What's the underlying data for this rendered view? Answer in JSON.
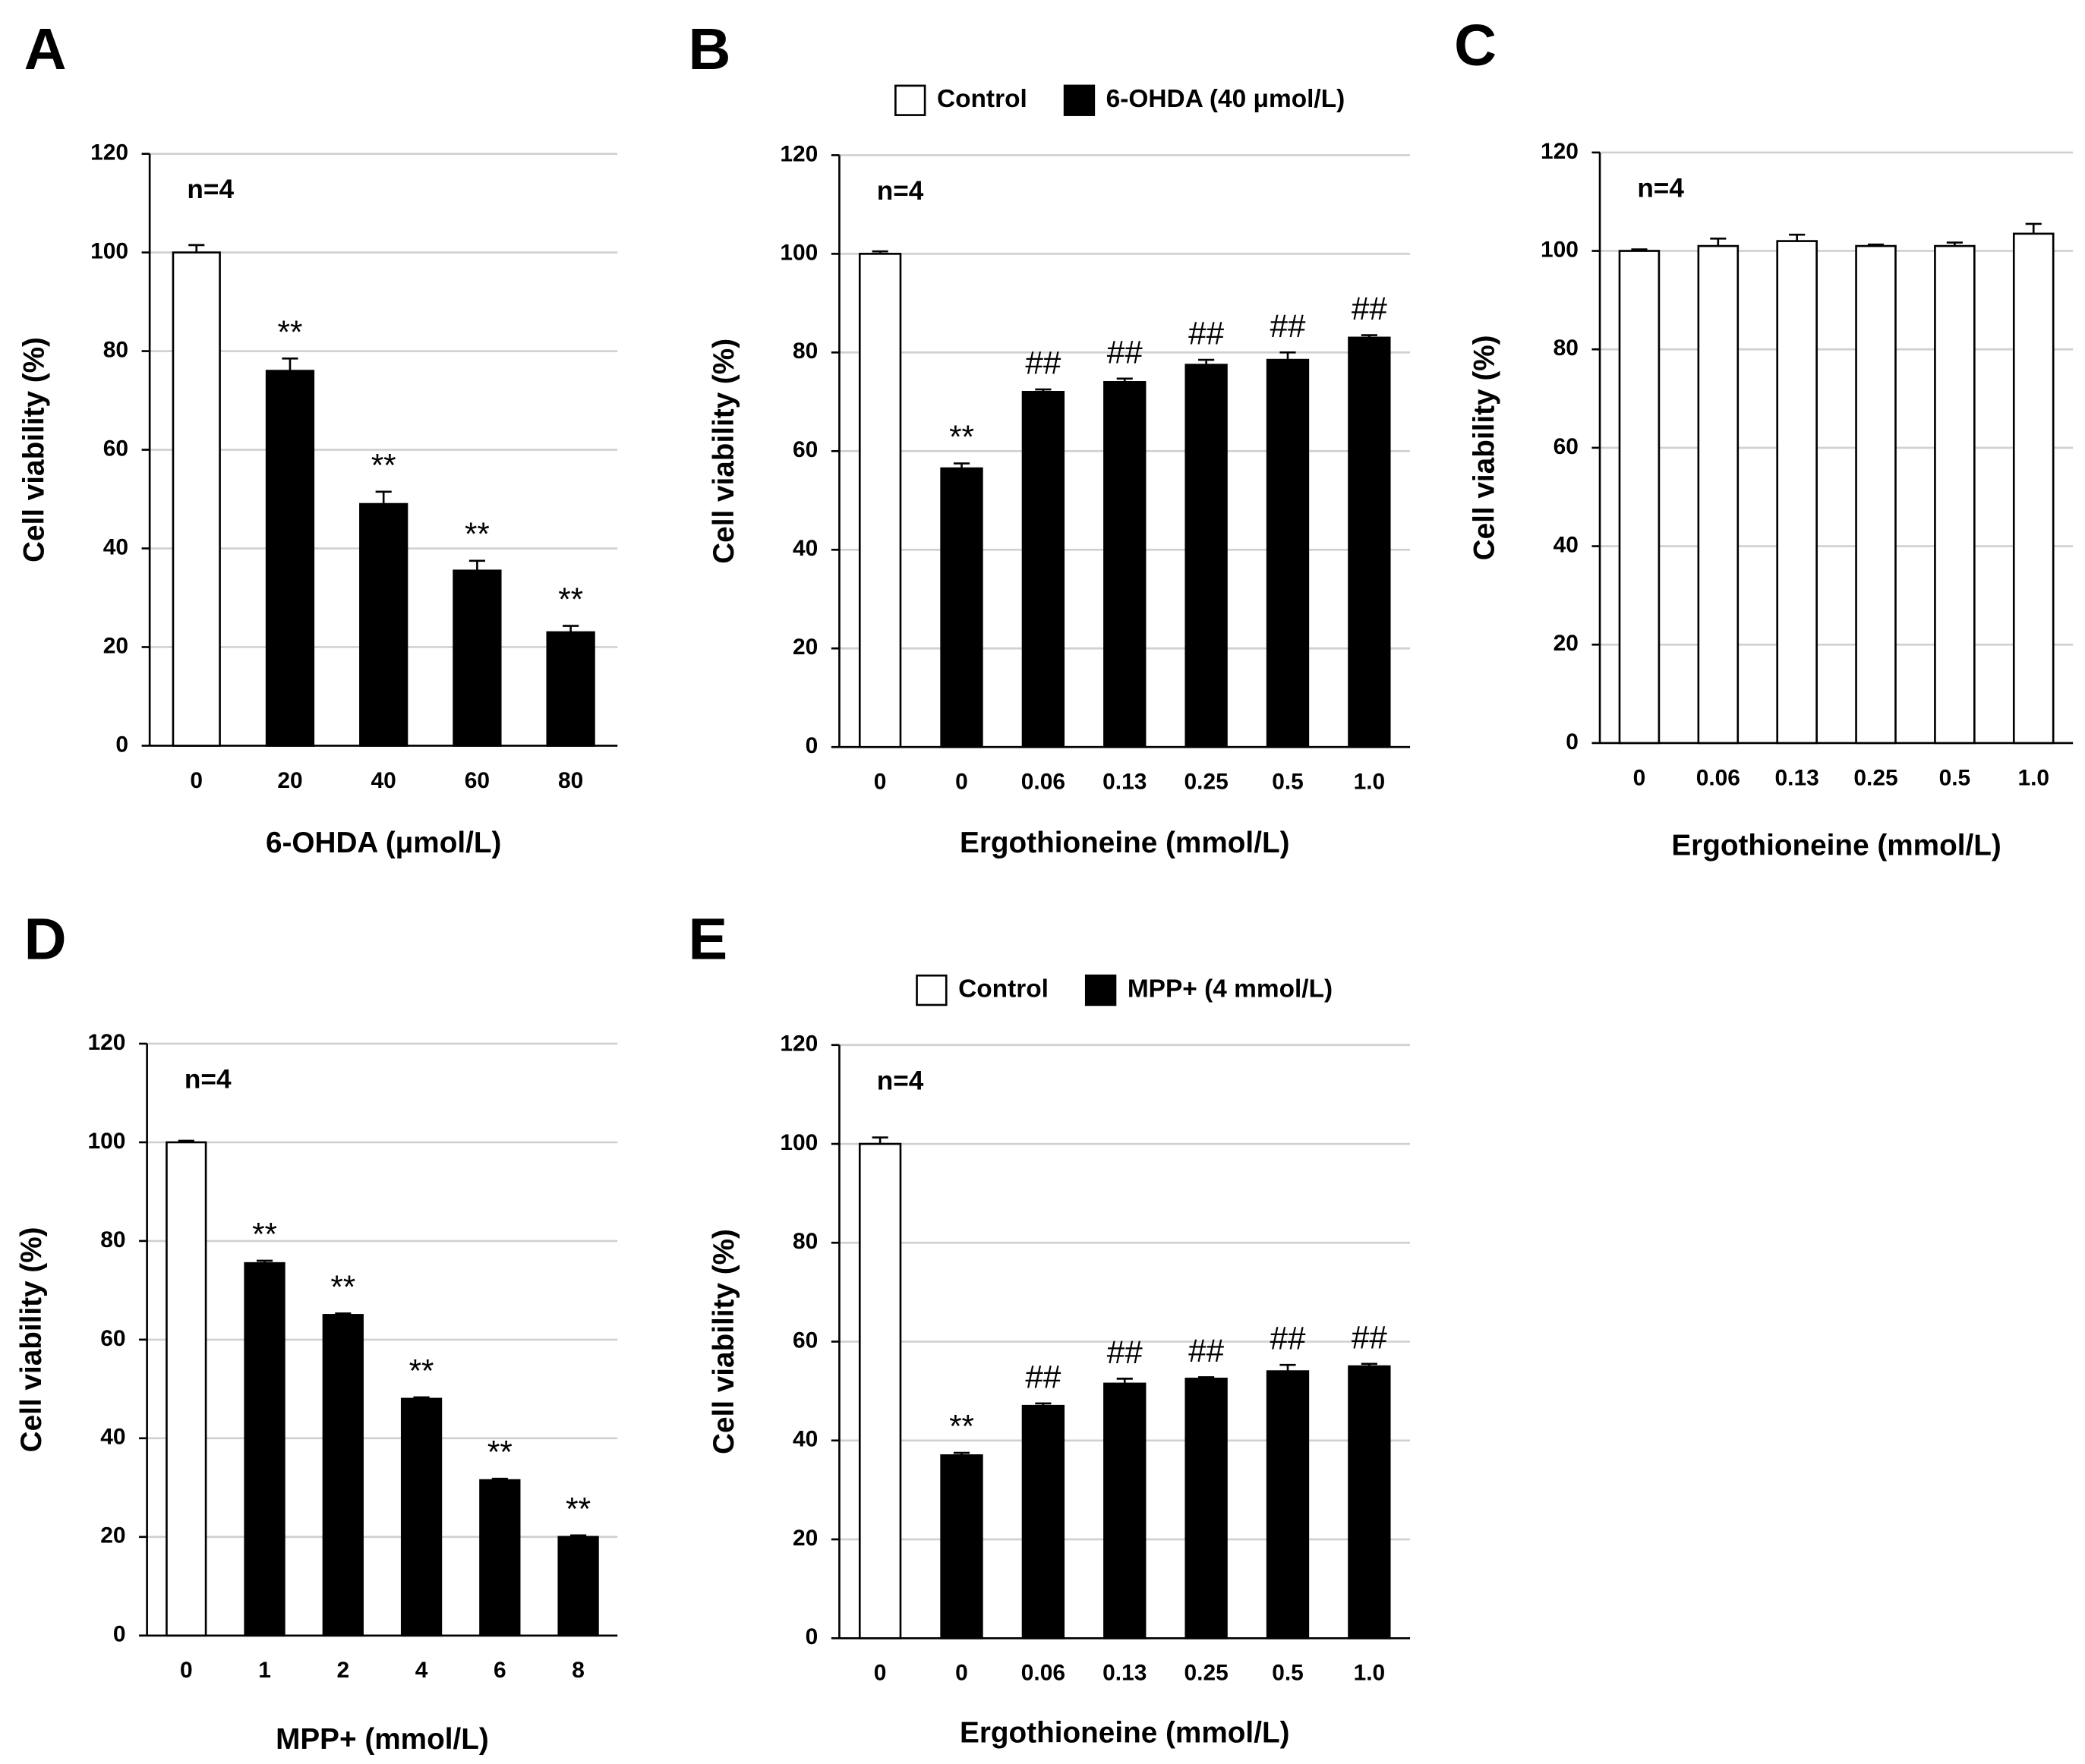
{
  "chart_data": [
    {
      "type": "bar",
      "panel": "A",
      "annotation": "n=4",
      "ylabel": "Cell viability (%)",
      "xlabel": "6-OHDA (μmol/L)",
      "categories": [
        "0",
        "20",
        "40",
        "60",
        "80"
      ],
      "values": [
        100,
        76,
        49,
        35.5,
        23
      ],
      "errors": [
        1.5,
        2.5,
        2.5,
        2,
        1.3
      ],
      "colors": [
        "#ffffff",
        "#000000",
        "#000000",
        "#000000",
        "#000000"
      ],
      "significance": [
        null,
        "**",
        "**",
        "**",
        "**"
      ],
      "ylim": [
        0,
        120
      ],
      "yticks": [
        0,
        20,
        40,
        60,
        80,
        100,
        120
      ],
      "grid": true
    },
    {
      "type": "bar",
      "panel": "B",
      "annotation": "n=4",
      "ylabel": "Cell viability (%)",
      "xlabel": "Ergothioneine (mmol/L)",
      "legend": [
        {
          "name": "Control",
          "color": "#ffffff"
        },
        {
          "name": "6-OHDA (40 μmol/L)",
          "color": "#000000"
        }
      ],
      "categories": [
        "0",
        "0",
        "0.06",
        "0.13",
        "0.25",
        "0.5",
        "1.0"
      ],
      "values": [
        100,
        56.5,
        72,
        74,
        77.5,
        78.5,
        83
      ],
      "errors": [
        0.5,
        1,
        0.5,
        0.7,
        1,
        1.5,
        0.5
      ],
      "colors": [
        "#ffffff",
        "#000000",
        "#000000",
        "#000000",
        "#000000",
        "#000000",
        "#000000"
      ],
      "significance": [
        null,
        "**",
        "##",
        "##",
        "##",
        "##",
        "##"
      ],
      "ylim": [
        0,
        120
      ],
      "yticks": [
        0,
        20,
        40,
        60,
        80,
        100,
        120
      ],
      "grid": true
    },
    {
      "type": "bar",
      "panel": "C",
      "annotation": "n=4",
      "ylabel": "Cell viability (%)",
      "xlabel": "Ergothioneine (mmol/L)",
      "categories": [
        "0",
        "0.06",
        "0.13",
        "0.25",
        "0.5",
        "1.0"
      ],
      "values": [
        100,
        101,
        102,
        101,
        101,
        103.5
      ],
      "errors": [
        0.3,
        1.5,
        1.3,
        0.3,
        0.7,
        2
      ],
      "colors": [
        "#ffffff",
        "#ffffff",
        "#ffffff",
        "#ffffff",
        "#ffffff",
        "#ffffff"
      ],
      "ylim": [
        0,
        120
      ],
      "yticks": [
        0,
        20,
        40,
        60,
        80,
        100,
        120
      ],
      "grid": true
    },
    {
      "type": "bar",
      "panel": "D",
      "annotation": "n=4",
      "ylabel": "Cell viability (%)",
      "xlabel": "MPP+ (mmol/L)",
      "categories": [
        "0",
        "1",
        "2",
        "4",
        "6",
        "8"
      ],
      "values": [
        100,
        75.5,
        65,
        48,
        31.5,
        20
      ],
      "errors": [
        0.3,
        0.5,
        0.3,
        0.3,
        0.3,
        0.3
      ],
      "colors": [
        "#ffffff",
        "#000000",
        "#000000",
        "#000000",
        "#000000",
        "#000000"
      ],
      "significance": [
        null,
        "**",
        "**",
        "**",
        "**",
        "**"
      ],
      "ylim": [
        0,
        120
      ],
      "yticks": [
        0,
        20,
        40,
        60,
        80,
        100,
        120
      ],
      "grid": true
    },
    {
      "type": "bar",
      "panel": "E",
      "annotation": "n=4",
      "ylabel": "Cell viability (%)",
      "xlabel": "Ergothioneine (mmol/L)",
      "legend": [
        {
          "name": "Control",
          "color": "#ffffff"
        },
        {
          "name": "MPP+ (4 mmol/L)",
          "color": "#000000"
        }
      ],
      "categories": [
        "0",
        "0",
        "0.06",
        "0.13",
        "0.25",
        "0.5",
        "1.0"
      ],
      "values": [
        100,
        37,
        47,
        51.5,
        52.5,
        54,
        55
      ],
      "errors": [
        1.3,
        0.5,
        0.5,
        1,
        0.3,
        1.3,
        0.5
      ],
      "colors": [
        "#ffffff",
        "#000000",
        "#000000",
        "#000000",
        "#000000",
        "#000000",
        "#000000"
      ],
      "significance": [
        null,
        "**",
        "##",
        "##",
        "##",
        "##",
        "##"
      ],
      "ylim": [
        0,
        120
      ],
      "yticks": [
        0,
        20,
        40,
        60,
        80,
        100,
        120
      ],
      "grid": true
    }
  ]
}
